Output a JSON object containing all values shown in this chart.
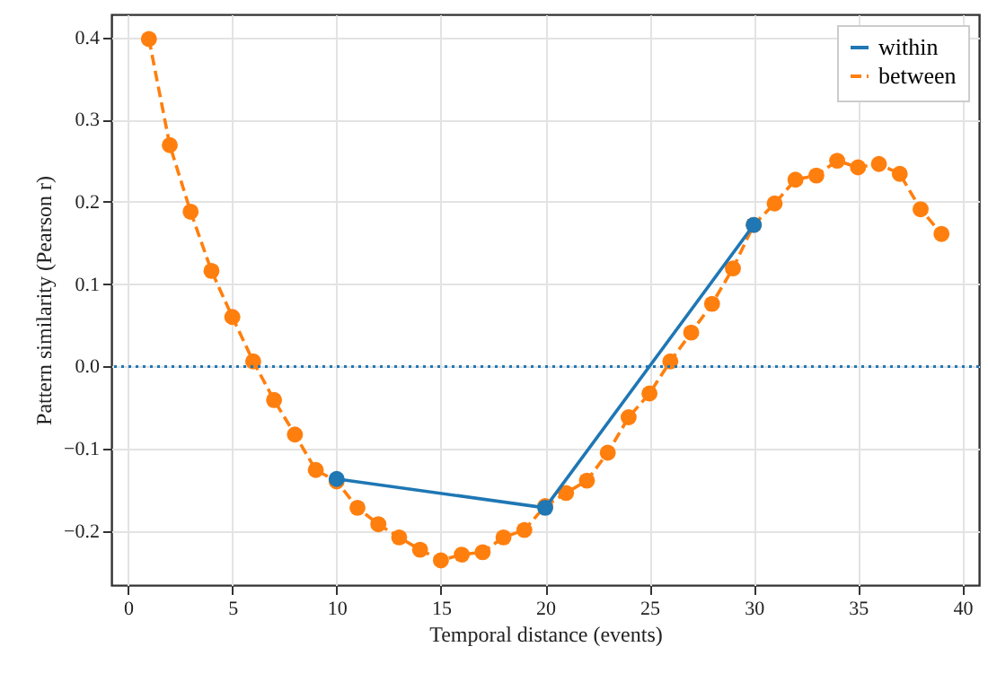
{
  "chart_data": {
    "type": "line",
    "xlabel": "Temporal distance (events)",
    "ylabel": "Pattern similarity (Pearson r)",
    "xlim": [
      -0.8,
      40.8
    ],
    "xticks": [
      0,
      5,
      10,
      15,
      20,
      25,
      30,
      35,
      40
    ],
    "ylim": [
      -0.266,
      0.428
    ],
    "yticks": [
      {
        "value": -0.2,
        "label": "−0.2"
      },
      {
        "value": -0.1,
        "label": "−0.1"
      },
      {
        "value": 0,
        "label": "0.0"
      },
      0.1,
      0.2,
      0.3,
      0.4
    ],
    "grid": true,
    "legend": "top right",
    "marker": "circle",
    "ref_lines": [
      {
        "axis": "y",
        "value": 0,
        "color": "#1f77b4",
        "line_style": "dotted"
      }
    ],
    "series": [
      {
        "name": "within",
        "color": "#1f77b4",
        "line_style": "solid",
        "x": [
          10,
          20,
          30
        ],
        "values": [
          -0.137,
          -0.172,
          0.172
        ]
      },
      {
        "name": "between",
        "color": "#ff7f0e",
        "line_style": "dashed",
        "x": [
          1,
          2,
          3,
          4,
          5,
          6,
          7,
          8,
          9,
          10,
          11,
          12,
          13,
          14,
          15,
          16,
          17,
          18,
          19,
          20,
          21,
          22,
          23,
          24,
          25,
          26,
          27,
          28,
          29,
          30,
          31,
          32,
          33,
          34,
          35,
          36,
          37,
          38,
          39
        ],
        "values": [
          0.398,
          0.269,
          0.188,
          0.116,
          0.06,
          0.006,
          -0.041,
          -0.083,
          -0.126,
          -0.14,
          -0.172,
          -0.192,
          -0.208,
          -0.223,
          -0.236,
          -0.229,
          -0.226,
          -0.208,
          -0.199,
          -0.17,
          -0.154,
          -0.139,
          -0.105,
          -0.062,
          -0.033,
          0.006,
          0.041,
          0.076,
          0.119,
          0.172,
          0.198,
          0.227,
          0.232,
          0.25,
          0.242,
          0.246,
          0.234,
          0.191,
          0.161
        ]
      }
    ]
  }
}
